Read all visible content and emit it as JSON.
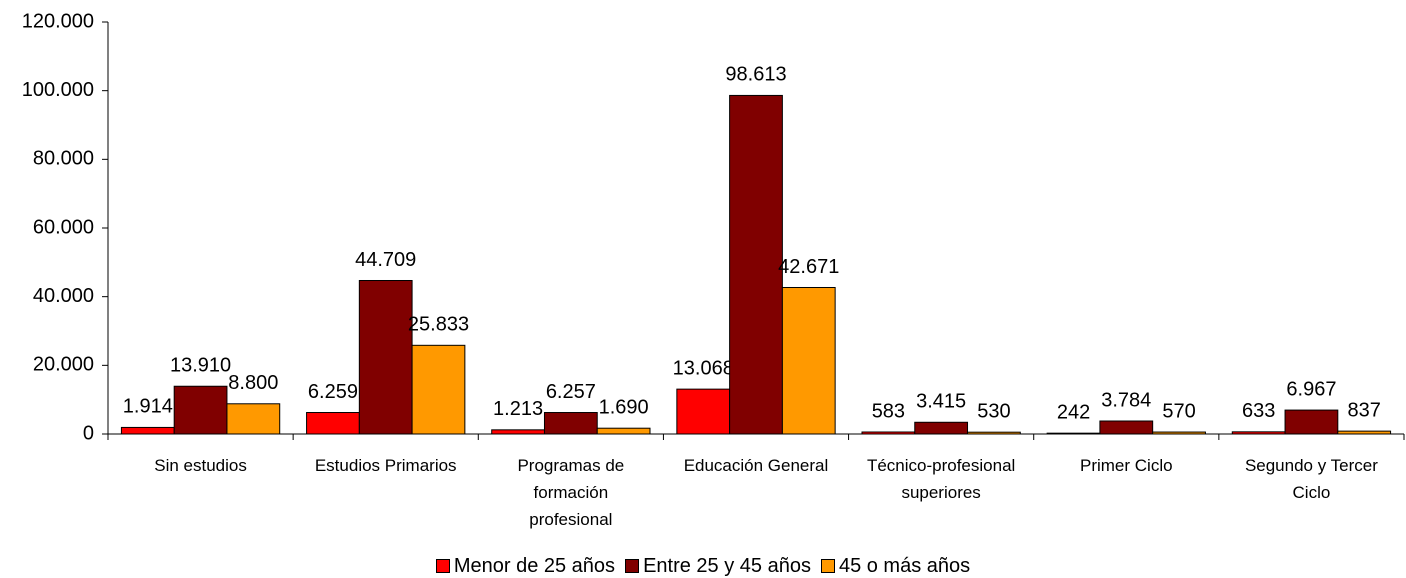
{
  "chart_data": {
    "type": "bar",
    "categories": [
      "Sin estudios",
      "Estudios Primarios",
      "Programas de formación profesional",
      "Educación General",
      "Técnico-profesional superiores",
      "Primer Ciclo",
      "Segundo y Tercer Ciclo"
    ],
    "series": [
      {
        "name": "Menor de 25 años",
        "color": "#ff0000",
        "values": [
          1914,
          6259,
          1213,
          13068,
          583,
          242,
          633
        ],
        "value_labels": [
          "1.914",
          "6.259",
          "1.213",
          "13.068",
          "583",
          "242",
          "633"
        ]
      },
      {
        "name": "Entre 25 y 45 años",
        "color": "#800000",
        "values": [
          13910,
          44709,
          6257,
          98613,
          3415,
          3784,
          6967
        ],
        "value_labels": [
          "13.910",
          "44.709",
          "6.257",
          "98.613",
          "3.415",
          "3.784",
          "6.967"
        ]
      },
      {
        "name": "45 o más años",
        "color": "#ff9900",
        "values": [
          8800,
          25833,
          1690,
          42671,
          530,
          570,
          837
        ],
        "value_labels": [
          "8.800",
          "25.833",
          "1.690",
          "42.671",
          "530",
          "570",
          "837"
        ]
      }
    ],
    "ylim": [
      0,
      120000
    ],
    "yticks": [
      0,
      {
        "value": 20000,
        "label": "20.000"
      },
      {
        "value": 40000,
        "label": "40.000"
      },
      {
        "value": 60000,
        "label": "60.000"
      },
      {
        "value": 80000,
        "label": "80.000"
      },
      {
        "value": 100000,
        "label": "100.000"
      },
      {
        "value": 120000,
        "label": "120.000"
      }
    ],
    "legend": "bottom"
  }
}
